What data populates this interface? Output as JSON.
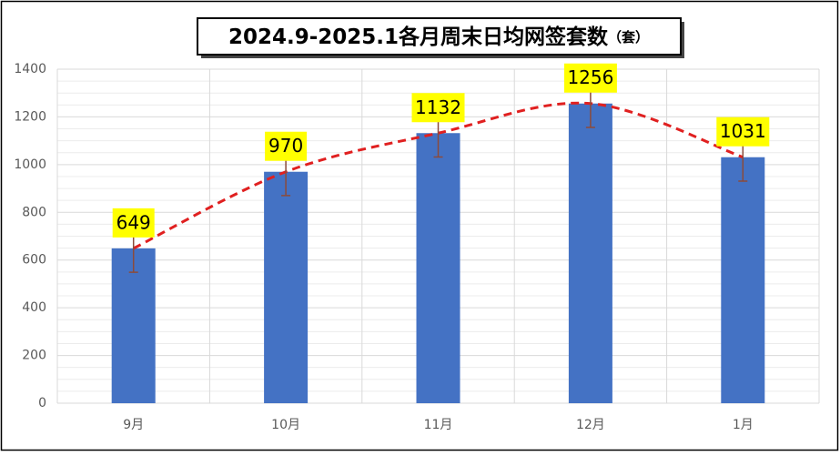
{
  "chart_data": {
    "type": "bar",
    "title": "2024.9-2025.1各月周末日均网签套数",
    "title_unit": "（套）",
    "categories": [
      "9月",
      "10月",
      "11月",
      "12月",
      "1月"
    ],
    "values": [
      649,
      970,
      1132,
      1256,
      1031
    ],
    "error": [
      100,
      100,
      100,
      100,
      100
    ],
    "color": "#4472c4",
    "line_color": "#e02020",
    "label_color": "#ffff00",
    "error_color": "#8b4b3b",
    "ylim": [
      0,
      1400
    ],
    "yticks": [
      0,
      200,
      400,
      600,
      800,
      1000,
      1200,
      1400
    ],
    "y_minor_ticks": [
      50,
      100,
      150,
      250,
      300,
      350,
      450,
      500,
      550,
      650,
      700,
      750,
      850,
      900,
      950,
      1050,
      1100,
      1150,
      1250,
      1300,
      1350
    ],
    "grid": true
  }
}
